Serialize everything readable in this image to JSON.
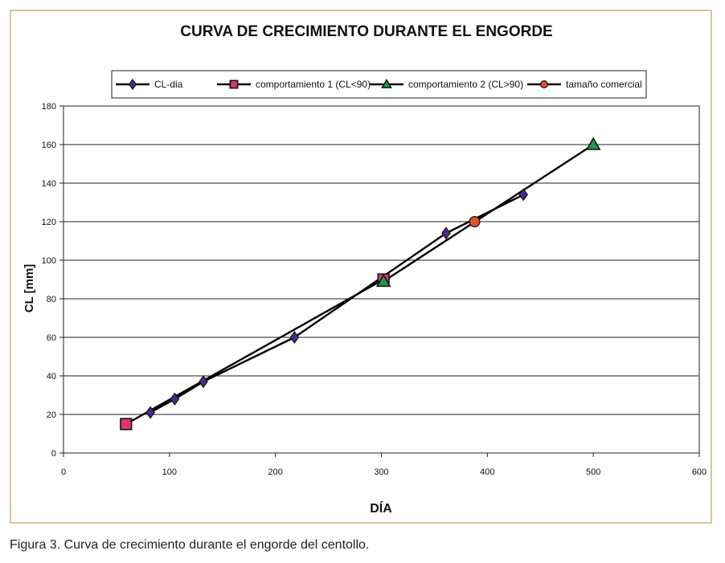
{
  "chart_data": {
    "type": "line",
    "title": "CURVA DE CRECIMIENTO DURANTE EL ENGORDE",
    "xlabel": "DÍA",
    "ylabel": "CL  [mm]",
    "xlim": [
      0,
      600
    ],
    "ylim": [
      0,
      180
    ],
    "xticks": [
      0,
      100,
      200,
      300,
      400,
      500,
      600
    ],
    "yticks": [
      0,
      20,
      40,
      60,
      80,
      100,
      120,
      140,
      160,
      180
    ],
    "grid": "horizontal",
    "legend_position": "top",
    "series": [
      {
        "name": "CL-dia",
        "marker": "diamond",
        "color": "#4b2a8c",
        "points": [
          [
            82,
            21
          ],
          [
            105,
            28
          ],
          [
            132,
            37
          ],
          [
            218,
            60
          ],
          [
            361,
            114
          ],
          [
            434,
            134
          ]
        ]
      },
      {
        "name": "comportamiento 1 (CL<90)",
        "marker": "square",
        "color": "#e0336e",
        "points": [
          [
            59,
            15
          ],
          [
            302,
            90
          ]
        ]
      },
      {
        "name": "comportamiento 2 (CL>90)",
        "marker": "triangle",
        "color": "#1f9a46",
        "points": [
          [
            302,
            89
          ],
          [
            500,
            160
          ]
        ]
      },
      {
        "name": "tamaño comercial",
        "marker": "circle",
        "color": "#e0502a",
        "points": [
          [
            388,
            120
          ]
        ]
      }
    ]
  },
  "caption": "Figura 3. Curva de crecimiento durante el engorde del centollo."
}
